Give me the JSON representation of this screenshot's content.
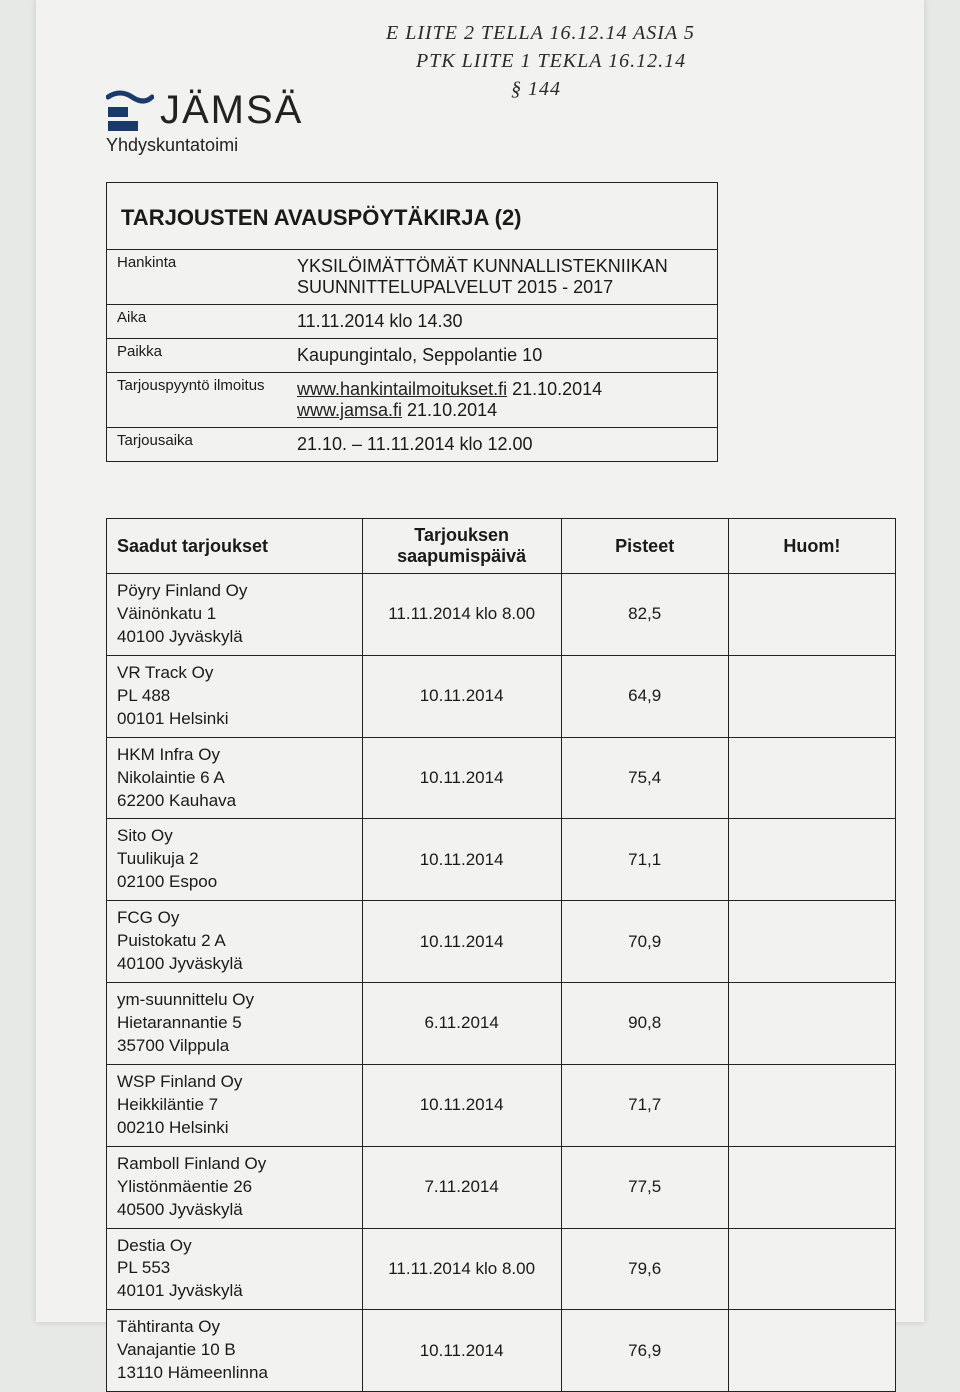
{
  "handwriting": {
    "line1": "E  LIITE  2  TELLA  16.12.14  ASIA  5",
    "line2": "PTK  LIITE  1  TEKLA  16.12.14",
    "line3": "§ 144"
  },
  "logo": {
    "text": "JÄMSÄ",
    "subunit": "Yhdyskuntatoimi"
  },
  "meta": {
    "title": "TARJOUSTEN AVAUSPÖYTÄKIRJA (2)",
    "rows": [
      {
        "label": "Hankinta",
        "value_line1": "YKSILÖIMÄTTÖMÄT KUNNALLISTEKNIIKAN",
        "value_line2": "SUUNNITTELUPALVELUT 2015 - 2017"
      },
      {
        "label": "Aika",
        "value_line1": "11.11.2014 klo 14.30",
        "value_line2": ""
      },
      {
        "label": "Paikka",
        "value_line1": "Kaupungintalo, Seppolantie 10",
        "value_line2": ""
      },
      {
        "label": "Tarjouspyyntö ilmoitus",
        "link1_text": "www.hankintailmoitukset.fi",
        "link1_after": " 21.10.2014",
        "link2_text": "www.jamsa.fi",
        "link2_after": " 21.10.2014"
      },
      {
        "label": "Tarjousaika",
        "value_line1": "21.10. – 11.11.2014 klo 12.00",
        "value_line2": ""
      }
    ]
  },
  "offers": {
    "headers": {
      "bidder": "Saadut tarjoukset",
      "date": "Tarjouksen saapumispäivä",
      "score": "Pisteet",
      "note": "Huom!"
    },
    "rows": [
      {
        "name": "Pöyry Finland Oy",
        "addr1": "Väinönkatu 1",
        "addr2": "40100 Jyväskylä",
        "date": "11.11.2014 klo 8.00",
        "score": "82,5",
        "note": ""
      },
      {
        "name": "VR Track Oy",
        "addr1": "PL 488",
        "addr2": "00101 Helsinki",
        "date": "10.11.2014",
        "score": "64,9",
        "note": ""
      },
      {
        "name": "HKM Infra Oy",
        "addr1": "Nikolaintie 6 A",
        "addr2": "62200 Kauhava",
        "date": "10.11.2014",
        "score": "75,4",
        "note": ""
      },
      {
        "name": "Sito Oy",
        "addr1": "Tuulikuja 2",
        "addr2": "02100 Espoo",
        "date": "10.11.2014",
        "score": "71,1",
        "note": ""
      },
      {
        "name": "FCG Oy",
        "addr1": "Puistokatu 2 A",
        "addr2": "40100 Jyväskylä",
        "date": "10.11.2014",
        "score": "70,9",
        "note": ""
      },
      {
        "name": "ym-suunnittelu Oy",
        "addr1": "Hietarannantie 5",
        "addr2": "35700 Vilppula",
        "date": "6.11.2014",
        "score": "90,8",
        "note": ""
      },
      {
        "name": "WSP Finland Oy",
        "addr1": "Heikkiläntie 7",
        "addr2": "00210 Helsinki",
        "date": "10.11.2014",
        "score": "71,7",
        "note": ""
      },
      {
        "name": "Ramboll Finland Oy",
        "addr1": "Ylistönmäentie 26",
        "addr2": "40500 Jyväskylä",
        "date": "7.11.2014",
        "score": "77,5",
        "note": ""
      },
      {
        "name": "Destia Oy",
        "addr1": "PL 553",
        "addr2": "40101 Jyväskylä",
        "date": "11.11.2014 klo 8.00",
        "score": "79,6",
        "note": ""
      },
      {
        "name": "Tähtiranta Oy",
        "addr1": "Vanajantie 10 B",
        "addr2": "13110 Hämeenlinna",
        "date": "10.11.2014",
        "score": "76,9",
        "note": ""
      }
    ]
  }
}
